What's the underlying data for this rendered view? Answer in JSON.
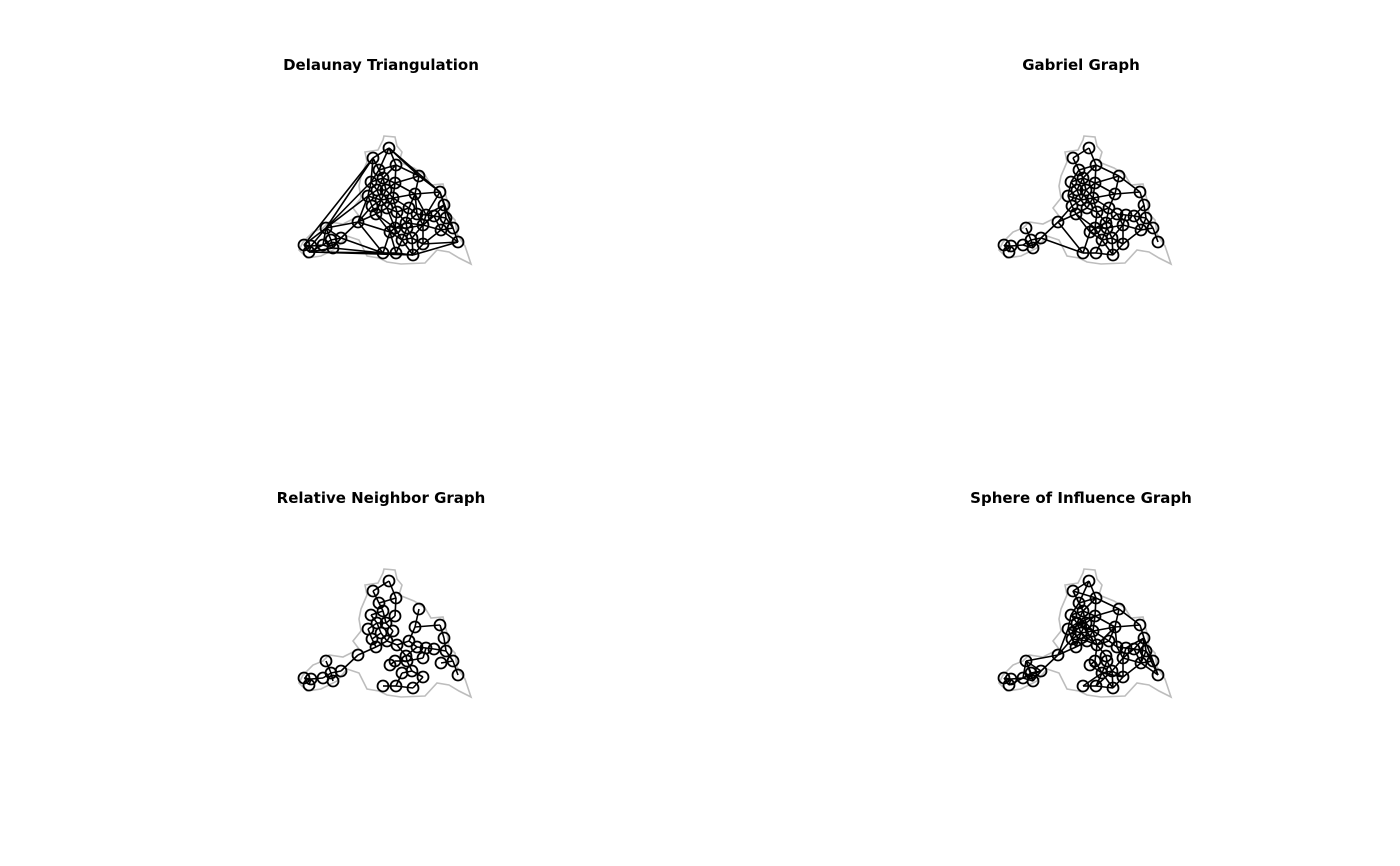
{
  "panels": [
    {
      "title": "Delaunay Triangulation"
    },
    {
      "title": "Gabriel Graph"
    },
    {
      "title": "Relative Neighbor Graph"
    },
    {
      "title": "Sphere of Influence Graph"
    }
  ],
  "colors": {
    "outline": "#bdbdbd",
    "edges": "#000000",
    "nodes": "#000000"
  }
}
